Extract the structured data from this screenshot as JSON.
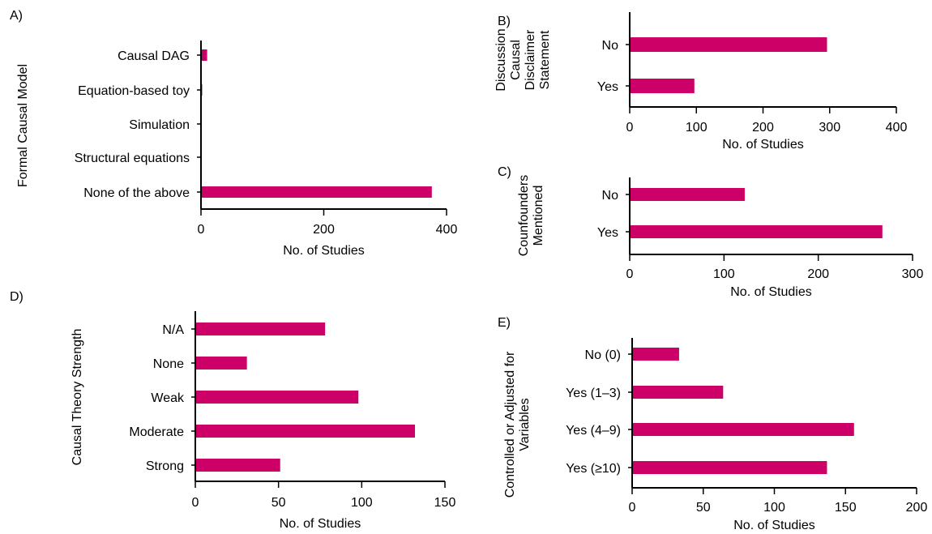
{
  "colors": {
    "bar": "#cc0066",
    "axis": "#000000"
  },
  "chart_data": [
    {
      "panel": "A)",
      "type": "bar",
      "orientation": "horizontal",
      "ylabel": "Formal Causal Model",
      "xlabel": "No. of Studies",
      "categories": [
        "Causal DAG",
        "Equation-based toy",
        "Simulation",
        "Structural equations",
        "None of the above"
      ],
      "values": [
        10,
        2,
        1,
        0,
        376
      ],
      "xlim": [
        0,
        400
      ],
      "xticks": [
        0,
        200,
        400
      ]
    },
    {
      "panel": "B)",
      "type": "bar",
      "orientation": "horizontal",
      "ylabel": [
        "Discussion",
        "Causal",
        "Disclaimer",
        "Statement"
      ],
      "xlabel": "No. of Studies",
      "categories": [
        "No",
        "Yes"
      ],
      "values": [
        296,
        97
      ],
      "xlim": [
        0,
        400
      ],
      "xticks": [
        0,
        100,
        200,
        300,
        400
      ]
    },
    {
      "panel": "C)",
      "type": "bar",
      "orientation": "horizontal",
      "ylabel": [
        "Counfounders",
        "Mentioned"
      ],
      "xlabel": "No. of Studies",
      "categories": [
        "No",
        "Yes"
      ],
      "values": [
        122,
        268
      ],
      "xlim": [
        0,
        300
      ],
      "xticks": [
        0,
        100,
        200,
        300
      ]
    },
    {
      "panel": "D)",
      "type": "bar",
      "orientation": "horizontal",
      "ylabel": "Causal Theory Strength",
      "xlabel": "No. of Studies",
      "categories": [
        "N/A",
        "None",
        "Weak",
        "Moderate",
        "Strong"
      ],
      "values": [
        78,
        31,
        98,
        132,
        51
      ],
      "xlim": [
        0,
        150
      ],
      "xticks": [
        0,
        50,
        100,
        150
      ]
    },
    {
      "panel": "E)",
      "type": "bar",
      "orientation": "horizontal",
      "ylabel": [
        "Controlled or Adjusted for",
        "Variables"
      ],
      "xlabel": "No. of Studies",
      "categories": [
        "No (0)",
        "Yes (1–3)",
        "Yes (4–9)",
        "Yes (≥10)"
      ],
      "values": [
        33,
        64,
        156,
        137
      ],
      "xlim": [
        0,
        200
      ],
      "xticks": [
        0,
        50,
        100,
        150,
        200
      ]
    }
  ]
}
